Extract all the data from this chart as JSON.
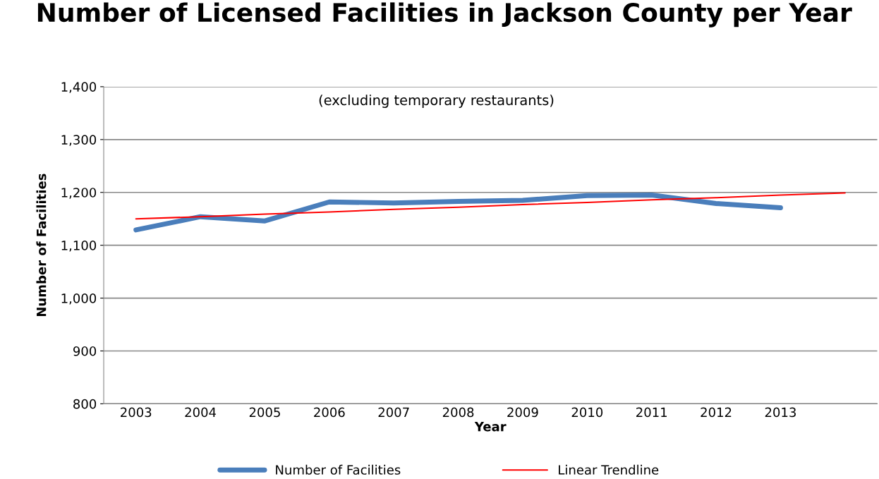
{
  "chart_data": {
    "type": "line",
    "title": "Number of Licensed Facilities in Jackson County per Year",
    "annotations": [
      "(excluding temporary restaurants)"
    ],
    "xlabel": "Year",
    "ylabel": "Number of Facilities",
    "categories": [
      "2003",
      "2004",
      "2005",
      "2006",
      "2007",
      "2008",
      "2009",
      "2010",
      "2011",
      "2012",
      "2013",
      null
    ],
    "series": [
      {
        "name": "Number of Facilities",
        "color": "#4a7ebb",
        "values": [
          1129,
          1154,
          1146,
          1182,
          1180,
          1183,
          1185,
          1194,
          1195,
          1179,
          1171,
          null
        ]
      },
      {
        "name": "Linear Trendline",
        "color": "#ff0000",
        "values": [
          1150,
          1154,
          1159,
          1163,
          1168,
          1172,
          1177,
          1181,
          1186,
          1190,
          1195,
          1199
        ]
      }
    ],
    "ylim": [
      800,
      1400
    ],
    "yticks": [
      {
        "value": 800,
        "label": "800"
      },
      {
        "value": 900,
        "label": "900"
      },
      {
        "value": 1000,
        "label": "1,000"
      },
      {
        "value": 1100,
        "label": "1,100"
      },
      {
        "value": 1200,
        "label": "1,200"
      },
      {
        "value": 1300,
        "label": "1,300"
      },
      {
        "value": 1400,
        "label": "1,400"
      }
    ],
    "grid": "y",
    "legend": "bottom",
    "marker": "none",
    "line_style": "solid"
  }
}
